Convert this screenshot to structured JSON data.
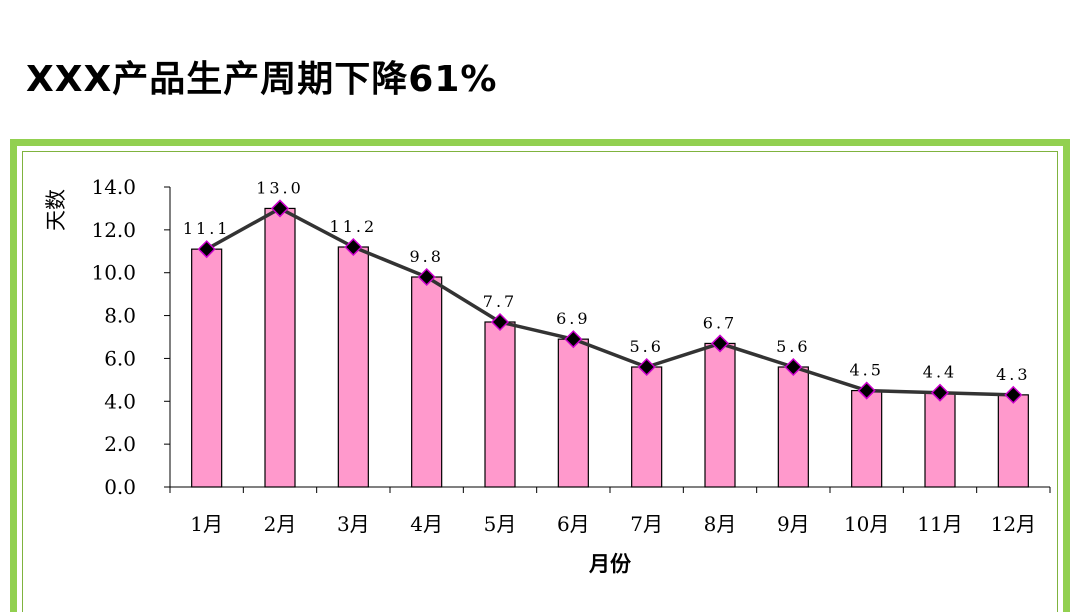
{
  "title": "XXX产品生产周期下降61%",
  "colors": {
    "frame": "#92d050",
    "bar_fill": "#ff99cc",
    "line": "#333333",
    "marker_fill": "#000000",
    "marker_stroke": "#cc00cc"
  },
  "chart_data": {
    "type": "bar",
    "overlay_line": true,
    "categories": [
      "1月",
      "2月",
      "3月",
      "4月",
      "5月",
      "6月",
      "7月",
      "8月",
      "9月",
      "10月",
      "11月",
      "12月"
    ],
    "values": [
      11.1,
      13.0,
      11.2,
      9.8,
      7.7,
      6.9,
      5.6,
      6.7,
      5.6,
      4.5,
      4.4,
      4.3
    ],
    "data_labels": [
      "11.1",
      "13.0",
      "11.2",
      "9.8",
      "7.7",
      "6.9",
      "5.6",
      "6.7",
      "5.6",
      "4.5",
      "4.4",
      "4.3"
    ],
    "xlabel": "月份",
    "ylabel": "天数",
    "ylim": [
      0,
      14
    ],
    "yticks": [
      "0.0",
      "2.0",
      "4.0",
      "6.0",
      "8.0",
      "10.0",
      "12.0",
      "14.0"
    ],
    "grid": false,
    "legend": "none"
  }
}
